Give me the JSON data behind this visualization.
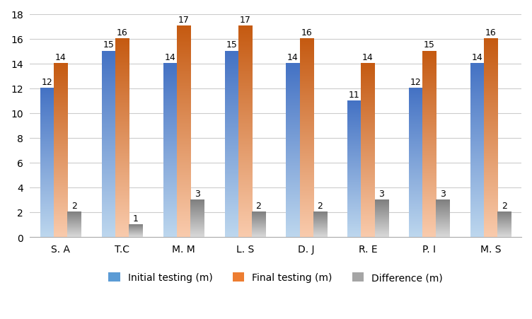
{
  "categories": [
    "S. A",
    "T.C",
    "M. M",
    "L. S",
    "D. J",
    "R. E",
    "P. I",
    "M. S"
  ],
  "initial": [
    12,
    15,
    14,
    15,
    14,
    11,
    12,
    14
  ],
  "final": [
    14,
    16,
    17,
    17,
    16,
    14,
    15,
    16
  ],
  "diff": [
    2,
    1,
    3,
    2,
    2,
    3,
    3,
    2
  ],
  "bar_color_initial_top": "#4472C4",
  "bar_color_initial_bot": "#BDD7EE",
  "bar_color_final_top": "#C55A11",
  "bar_color_final_bot": "#F9CBAD",
  "bar_color_diff_top": "#7F7F7F",
  "bar_color_diff_bot": "#D9D9D9",
  "ylim": [
    0,
    18
  ],
  "yticks": [
    0,
    2,
    4,
    6,
    8,
    10,
    12,
    14,
    16,
    18
  ],
  "legend_colors": [
    "#5B9BD5",
    "#ED7D31",
    "#A5A5A5"
  ],
  "legend_labels": [
    "Initial testing (m)",
    "Final testing (m)",
    "Difference (m)"
  ],
  "bar_width": 0.22,
  "label_fontsize": 9,
  "tick_fontsize": 10,
  "legend_fontsize": 10,
  "background_color": "#FFFFFF"
}
